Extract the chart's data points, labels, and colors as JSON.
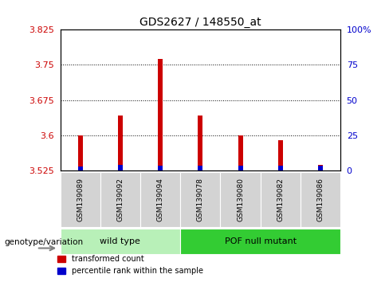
{
  "title": "GDS2627 / 148550_at",
  "samples": [
    "GSM139089",
    "GSM139092",
    "GSM139094",
    "GSM139078",
    "GSM139080",
    "GSM139082",
    "GSM139086"
  ],
  "groups": [
    {
      "label": "wild type",
      "indices": [
        0,
        1,
        2
      ],
      "color": "#90ee90"
    },
    {
      "label": "POF null mutant",
      "indices": [
        3,
        4,
        5,
        6
      ],
      "color": "#33cc33"
    }
  ],
  "transformed_count": [
    3.6,
    3.643,
    3.762,
    3.643,
    3.6,
    3.59,
    3.538
  ],
  "percentile_rank_pct": [
    3.0,
    4.0,
    3.5,
    3.5,
    3.5,
    3.5,
    3.5
  ],
  "ymin": 3.525,
  "ymax": 3.825,
  "yticks": [
    3.525,
    3.6,
    3.675,
    3.75,
    3.825
  ],
  "ytick_labels": [
    "3.525",
    "3.6",
    "3.675",
    "3.75",
    "3.825"
  ],
  "y2ticks": [
    0,
    25,
    50,
    75,
    100
  ],
  "y2labels": [
    "0",
    "25",
    "50",
    "75",
    "100%"
  ],
  "bar_width": 0.12,
  "bar_color_red": "#cc0000",
  "bar_color_blue": "#0000cc",
  "axis_color_red": "#cc0000",
  "axis_color_blue": "#0000cc",
  "grid_color": "black",
  "label_group": "genotype/variation",
  "legend_red": "transformed count",
  "legend_blue": "percentile rank within the sample",
  "bg_xticklabels": "#d3d3d3",
  "bg_group_wild": "#b8f0b8",
  "bg_group_pof": "#33cc33"
}
